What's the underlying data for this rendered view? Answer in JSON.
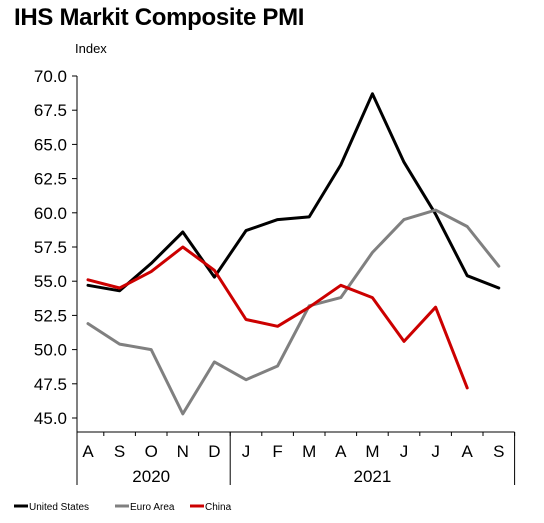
{
  "chart_data": {
    "type": "line",
    "title": "IHS Markit Composite PMI",
    "ylabel": "Index",
    "xlabel": "",
    "ylim": [
      45.0,
      70.0
    ],
    "yticks": [
      "45.0",
      "47.5",
      "50.0",
      "52.5",
      "55.0",
      "57.5",
      "60.0",
      "62.5",
      "65.0",
      "67.5",
      "70.0"
    ],
    "categories": [
      "A",
      "S",
      "O",
      "N",
      "D",
      "J",
      "F",
      "M",
      "A",
      "M",
      "J",
      "J",
      "A",
      "S"
    ],
    "year_labels": [
      {
        "label": "2020",
        "span": [
          0,
          4
        ]
      },
      {
        "label": "2021",
        "span": [
          5,
          13
        ]
      }
    ],
    "grid": false,
    "legend_position": "bottom-left",
    "series": [
      {
        "name": "United States",
        "color": "#000000",
        "values": [
          54.7,
          54.3,
          56.3,
          58.6,
          55.3,
          58.7,
          59.5,
          59.7,
          63.5,
          68.7,
          63.7,
          59.9,
          55.4,
          54.5
        ]
      },
      {
        "name": "Euro Area",
        "color": "#808080",
        "values": [
          51.9,
          50.4,
          50.0,
          45.3,
          49.1,
          47.8,
          48.8,
          53.2,
          53.8,
          57.1,
          59.5,
          60.2,
          59.0,
          56.1
        ]
      },
      {
        "name": "China",
        "color": "#cc0000",
        "values": [
          55.1,
          54.5,
          55.7,
          57.5,
          55.8,
          52.2,
          51.7,
          53.1,
          54.7,
          53.8,
          50.6,
          53.1,
          47.2,
          null
        ]
      }
    ]
  }
}
